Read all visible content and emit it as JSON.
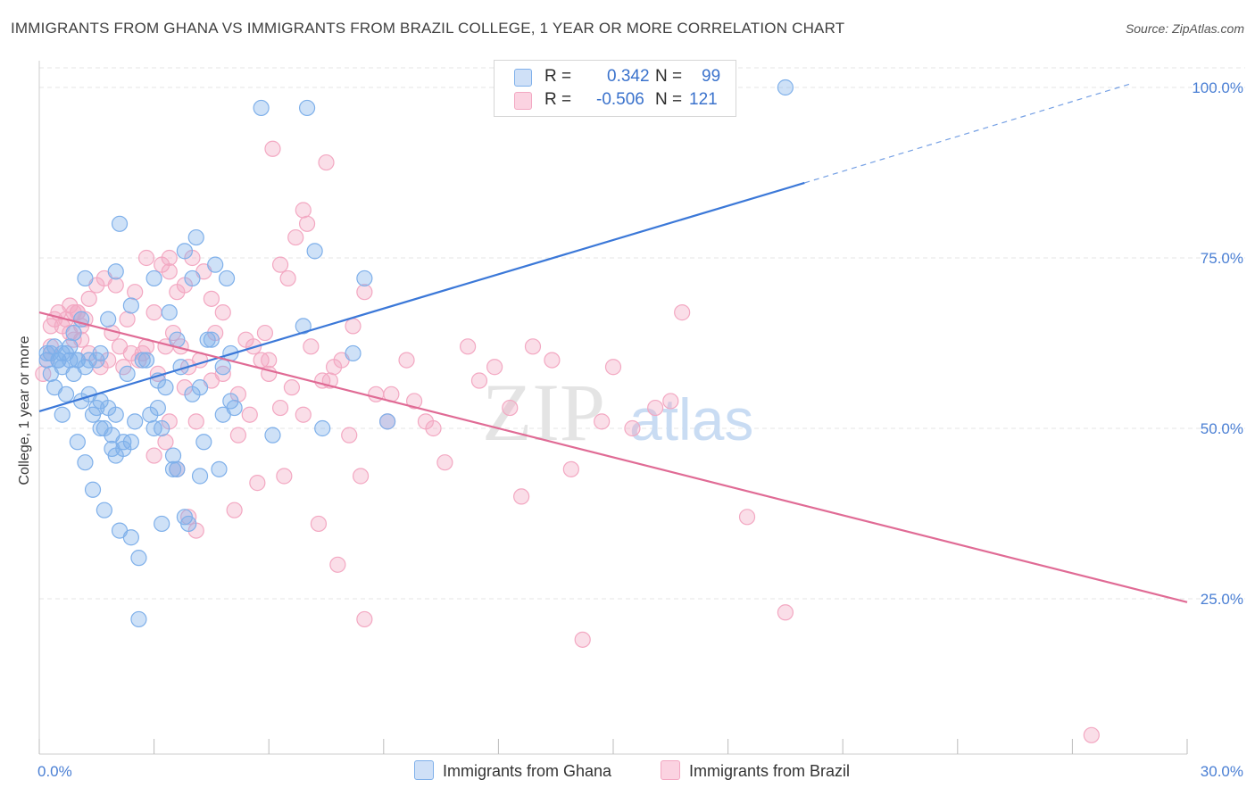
{
  "header": {
    "title": "IMMIGRANTS FROM GHANA VS IMMIGRANTS FROM BRAZIL COLLEGE, 1 YEAR OR MORE CORRELATION CHART",
    "source": "Source: ZipAtlas.com"
  },
  "watermark": {
    "zip": "ZIP",
    "atlas": "atlas"
  },
  "legend": {
    "ghana": {
      "r_label": "R =",
      "r_value": "0.342",
      "n_label": "N =",
      "n_value": "99",
      "color": "#7fb0ea"
    },
    "brazil": {
      "r_label": "R =",
      "r_value": "-0.506",
      "n_label": "N =",
      "n_value": "121",
      "color": "#f3a8c2"
    }
  },
  "bottom_legend": {
    "ghana_label": "Immigrants from Ghana",
    "brazil_label": "Immigrants from Brazil"
  },
  "chart_data": {
    "type": "scatter",
    "title": "IMMIGRANTS FROM GHANA VS IMMIGRANTS FROM BRAZIL COLLEGE, 1 YEAR OR MORE CORRELATION CHART",
    "xlabel": "",
    "ylabel": "College, 1 year or more",
    "xlim": [
      0,
      30
    ],
    "ylim": [
      0,
      105
    ],
    "x_tick_labels": [
      "0.0%",
      "30.0%"
    ],
    "y_ticks": [
      25,
      50,
      75,
      100
    ],
    "y_tick_labels": [
      "25.0%",
      "50.0%",
      "75.0%",
      "100.0%"
    ],
    "grid": true,
    "series": [
      {
        "name": "Immigrants from Ghana",
        "color": "#7fb0ea",
        "line_color": "#3b78d8",
        "trend": {
          "x0": 0,
          "y0": 52.5,
          "x1": 20,
          "y1": 86,
          "dashed_to_x": 28.5,
          "dashed_to_y": 100.5
        },
        "points": [
          [
            0.2,
            60
          ],
          [
            0.3,
            61
          ],
          [
            0.4,
            62
          ],
          [
            0.5,
            60
          ],
          [
            0.6,
            59
          ],
          [
            0.3,
            58
          ],
          [
            0.7,
            61
          ],
          [
            0.8,
            60
          ],
          [
            1.0,
            60
          ],
          [
            1.2,
            59
          ],
          [
            0.4,
            56
          ],
          [
            0.7,
            55
          ],
          [
            0.9,
            58
          ],
          [
            1.1,
            54
          ],
          [
            1.3,
            55
          ],
          [
            1.5,
            53
          ],
          [
            1.6,
            54
          ],
          [
            1.8,
            53
          ],
          [
            2.0,
            52
          ],
          [
            1.4,
            52
          ],
          [
            0.6,
            52
          ],
          [
            1.0,
            48
          ],
          [
            1.2,
            45
          ],
          [
            1.4,
            41
          ],
          [
            1.6,
            50
          ],
          [
            1.9,
            49
          ],
          [
            2.2,
            48
          ],
          [
            2.5,
            51
          ],
          [
            2.9,
            52
          ],
          [
            3.2,
            50
          ],
          [
            1.9,
            47
          ],
          [
            2.2,
            47
          ],
          [
            1.7,
            38
          ],
          [
            2.1,
            35
          ],
          [
            2.4,
            34
          ],
          [
            2.6,
            31
          ],
          [
            3.2,
            36
          ],
          [
            3.5,
            46
          ],
          [
            3.6,
            44
          ],
          [
            3.8,
            37
          ],
          [
            3.9,
            36
          ],
          [
            4.3,
            48
          ],
          [
            4.7,
            44
          ],
          [
            4.8,
            52
          ],
          [
            5.0,
            54
          ],
          [
            1.2,
            72
          ],
          [
            2.0,
            73
          ],
          [
            2.1,
            80
          ],
          [
            2.4,
            68
          ],
          [
            3.0,
            72
          ],
          [
            3.4,
            67
          ],
          [
            3.6,
            63
          ],
          [
            3.8,
            76
          ],
          [
            4.0,
            72
          ],
          [
            4.1,
            78
          ],
          [
            4.4,
            63
          ],
          [
            4.6,
            74
          ],
          [
            4.9,
            72
          ],
          [
            5.0,
            61
          ],
          [
            2.8,
            60
          ],
          [
            3.1,
            57
          ],
          [
            3.3,
            56
          ],
          [
            3.7,
            59
          ],
          [
            4.0,
            55
          ],
          [
            4.2,
            56
          ],
          [
            4.8,
            59
          ],
          [
            1.1,
            66
          ],
          [
            1.8,
            66
          ],
          [
            2.7,
            60
          ],
          [
            1.5,
            60
          ],
          [
            5.8,
            97
          ],
          [
            7.0,
            97
          ],
          [
            19.5,
            100
          ],
          [
            7.2,
            76
          ],
          [
            8.5,
            72
          ],
          [
            6.9,
            65
          ],
          [
            7.4,
            50
          ],
          [
            8.2,
            61
          ],
          [
            6.1,
            49
          ],
          [
            9.1,
            51
          ],
          [
            0.9,
            64
          ],
          [
            1.6,
            61
          ],
          [
            2.3,
            58
          ],
          [
            3.5,
            44
          ],
          [
            0.5,
            60
          ],
          [
            0.8,
            62
          ],
          [
            1.3,
            60
          ],
          [
            2.6,
            22
          ],
          [
            4.5,
            63
          ],
          [
            3.1,
            53
          ],
          [
            2.0,
            46
          ],
          [
            1.0,
            60
          ],
          [
            0.2,
            61
          ],
          [
            0.6,
            61
          ],
          [
            3.0,
            50
          ],
          [
            4.2,
            43
          ],
          [
            2.4,
            48
          ],
          [
            1.7,
            50
          ],
          [
            5.1,
            53
          ]
        ]
      },
      {
        "name": "Immigrants from Brazil",
        "color": "#f3a8c2",
        "line_color": "#e06b95",
        "trend": {
          "x0": 0,
          "y0": 67,
          "x1": 30,
          "y1": 24.5
        },
        "points": [
          [
            0.1,
            58
          ],
          [
            0.2,
            60
          ],
          [
            0.3,
            62
          ],
          [
            0.4,
            66
          ],
          [
            0.5,
            67
          ],
          [
            0.6,
            65
          ],
          [
            0.7,
            66
          ],
          [
            0.8,
            64
          ],
          [
            0.9,
            63
          ],
          [
            1.0,
            67
          ],
          [
            1.1,
            65
          ],
          [
            1.2,
            66
          ],
          [
            0.8,
            68
          ],
          [
            1.0,
            67
          ],
          [
            1.3,
            69
          ],
          [
            1.5,
            71
          ],
          [
            1.7,
            72
          ],
          [
            2.0,
            71
          ],
          [
            2.3,
            66
          ],
          [
            2.5,
            70
          ],
          [
            2.8,
            75
          ],
          [
            3.0,
            67
          ],
          [
            3.2,
            74
          ],
          [
            3.4,
            73
          ],
          [
            3.6,
            70
          ],
          [
            3.8,
            71
          ],
          [
            4.0,
            75
          ],
          [
            4.3,
            73
          ],
          [
            4.5,
            69
          ],
          [
            4.8,
            67
          ],
          [
            2.1,
            62
          ],
          [
            2.4,
            61
          ],
          [
            2.6,
            60
          ],
          [
            2.8,
            62
          ],
          [
            3.1,
            58
          ],
          [
            3.3,
            62
          ],
          [
            3.5,
            64
          ],
          [
            3.7,
            62
          ],
          [
            3.9,
            59
          ],
          [
            4.2,
            60
          ],
          [
            4.5,
            57
          ],
          [
            4.8,
            58
          ],
          [
            5.2,
            55
          ],
          [
            5.4,
            63
          ],
          [
            5.6,
            62
          ],
          [
            5.8,
            60
          ],
          [
            6.0,
            58
          ],
          [
            6.3,
            53
          ],
          [
            6.6,
            56
          ],
          [
            6.9,
            52
          ],
          [
            7.1,
            62
          ],
          [
            7.4,
            57
          ],
          [
            7.7,
            59
          ],
          [
            7.9,
            60
          ],
          [
            8.2,
            65
          ],
          [
            8.5,
            70
          ],
          [
            8.8,
            55
          ],
          [
            9.1,
            51
          ],
          [
            9.6,
            60
          ],
          [
            10.1,
            51
          ],
          [
            10.3,
            50
          ],
          [
            10.6,
            45
          ],
          [
            11.2,
            62
          ],
          [
            11.5,
            57
          ],
          [
            11.9,
            59
          ],
          [
            12.3,
            53
          ],
          [
            12.6,
            40
          ],
          [
            12.9,
            62
          ],
          [
            13.4,
            60
          ],
          [
            13.9,
            44
          ],
          [
            14.7,
            51
          ],
          [
            15.0,
            59
          ],
          [
            15.5,
            50
          ],
          [
            16.1,
            53
          ],
          [
            16.5,
            54
          ],
          [
            16.8,
            67
          ],
          [
            6.1,
            91
          ],
          [
            7.5,
            89
          ],
          [
            6.9,
            82
          ],
          [
            7.0,
            80
          ],
          [
            6.7,
            78
          ],
          [
            6.3,
            74
          ],
          [
            6.5,
            72
          ],
          [
            3.0,
            46
          ],
          [
            3.6,
            44
          ],
          [
            3.9,
            37
          ],
          [
            4.1,
            35
          ],
          [
            5.1,
            38
          ],
          [
            5.7,
            42
          ],
          [
            6.4,
            43
          ],
          [
            7.3,
            36
          ],
          [
            7.8,
            30
          ],
          [
            8.4,
            43
          ],
          [
            8.5,
            22
          ],
          [
            9.2,
            55
          ],
          [
            9.8,
            54
          ],
          [
            14.2,
            19
          ],
          [
            18.5,
            37
          ],
          [
            19.5,
            23
          ],
          [
            27.5,
            5
          ],
          [
            1.6,
            59
          ],
          [
            1.9,
            64
          ],
          [
            2.2,
            59
          ],
          [
            3.4,
            51
          ],
          [
            3.8,
            56
          ],
          [
            4.1,
            51
          ],
          [
            5.2,
            49
          ],
          [
            5.5,
            52
          ],
          [
            6.0,
            60
          ],
          [
            0.9,
            67
          ],
          [
            1.1,
            63
          ],
          [
            1.3,
            61
          ],
          [
            1.8,
            60
          ],
          [
            2.7,
            61
          ],
          [
            3.3,
            48
          ],
          [
            4.6,
            64
          ],
          [
            5.9,
            64
          ],
          [
            7.6,
            57
          ],
          [
            8.1,
            49
          ],
          [
            3.4,
            75
          ],
          [
            0.3,
            65
          ]
        ]
      }
    ]
  }
}
